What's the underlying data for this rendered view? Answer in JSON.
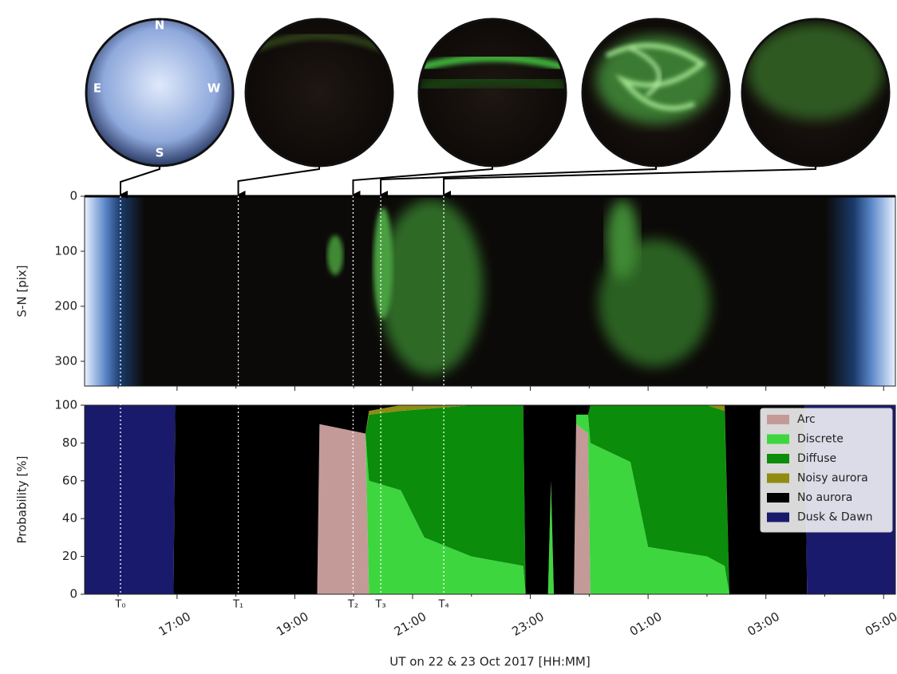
{
  "all_sky_images": {
    "compass": [
      "N",
      "E",
      "W",
      "S"
    ]
  },
  "chart_data": [
    {
      "type": "keogram",
      "ylabel": "S-N [pix]",
      "ylim": [
        345,
        0
      ],
      "yticks": [
        0,
        100,
        200,
        300
      ]
    },
    {
      "type": "stackedarea",
      "xlabel": "UT on 22 & 23 Oct 2017 [HH:MM]",
      "ylabel": "Probability [%]",
      "xlim": [
        15.43,
        29.2
      ],
      "xticks": [
        {
          "value": 17,
          "label": "17:00"
        },
        {
          "value": 19,
          "label": "19:00"
        },
        {
          "value": 21,
          "label": "21:00"
        },
        {
          "value": 23,
          "label": "23:00"
        },
        {
          "value": 25,
          "label": "01:00"
        },
        {
          "value": 27,
          "label": "03:00"
        },
        {
          "value": 29,
          "label": "05:00"
        }
      ],
      "xminorticks": [
        16,
        18,
        20,
        22,
        24,
        26,
        28
      ],
      "ylim": [
        0,
        100
      ],
      "yticks": [
        0,
        20,
        40,
        60,
        80,
        100
      ],
      "legend": "upper right",
      "markers": [
        {
          "label": "T₀",
          "x": 16.04
        },
        {
          "label": "T₁",
          "x": 18.04
        },
        {
          "label": "T₂",
          "x": 19.99
        },
        {
          "label": "T₃",
          "x": 20.46
        },
        {
          "label": "T₄",
          "x": 21.53
        }
      ],
      "x": [
        15.43,
        16.94,
        16.97,
        19.38,
        19.42,
        20.2,
        20.26,
        20.8,
        21.2,
        22.0,
        22.88,
        22.92,
        23.3,
        23.35,
        23.4,
        23.74,
        23.78,
        23.98,
        24.02,
        24.7,
        25.0,
        26.0,
        26.3,
        26.38,
        27.66,
        27.7,
        29.2
      ],
      "series": [
        {
          "name": "Arc",
          "color": "#c39a98",
          "values": [
            0,
            0,
            0,
            0,
            90,
            85,
            0,
            0,
            0,
            0,
            0,
            0,
            0,
            0,
            0,
            0,
            90,
            85,
            0,
            0,
            0,
            0,
            0,
            0,
            0,
            0,
            0
          ]
        },
        {
          "name": "Discrete",
          "color": "#3ed63e",
          "values": [
            0,
            0,
            0,
            0,
            0,
            0,
            60,
            55,
            30,
            20,
            15,
            0,
            0,
            60,
            0,
            0,
            5,
            10,
            80,
            70,
            25,
            20,
            15,
            0,
            0,
            0,
            0
          ]
        },
        {
          "name": "Diffuse",
          "color": "#0b8c0b",
          "values": [
            0,
            0,
            0,
            0,
            0,
            0,
            35,
            42,
            68,
            80,
            85,
            0,
            0,
            0,
            0,
            0,
            0,
            0,
            20,
            30,
            75,
            80,
            82,
            0,
            0,
            0,
            0
          ]
        },
        {
          "name": "Noisy aurora",
          "color": "#8f8c12",
          "values": [
            0,
            0,
            0,
            0,
            0,
            0,
            2,
            3,
            2,
            0,
            0,
            0,
            0,
            0,
            0,
            0,
            0,
            0,
            0,
            0,
            0,
            0,
            3,
            0,
            0,
            0,
            0
          ]
        },
        {
          "name": "No aurora",
          "color": "#000000",
          "values": [
            0,
            0,
            100,
            100,
            10,
            15,
            3,
            0,
            0,
            0,
            0,
            100,
            100,
            40,
            100,
            100,
            5,
            5,
            0,
            0,
            0,
            0,
            0,
            100,
            100,
            0,
            0
          ]
        },
        {
          "name": "Dusk & Dawn",
          "color": "#1a1a6c",
          "values": [
            100,
            100,
            0,
            0,
            0,
            0,
            0,
            0,
            0,
            0,
            0,
            0,
            0,
            0,
            0,
            0,
            0,
            0,
            0,
            0,
            0,
            0,
            0,
            0,
            0,
            100,
            100
          ]
        }
      ]
    }
  ]
}
